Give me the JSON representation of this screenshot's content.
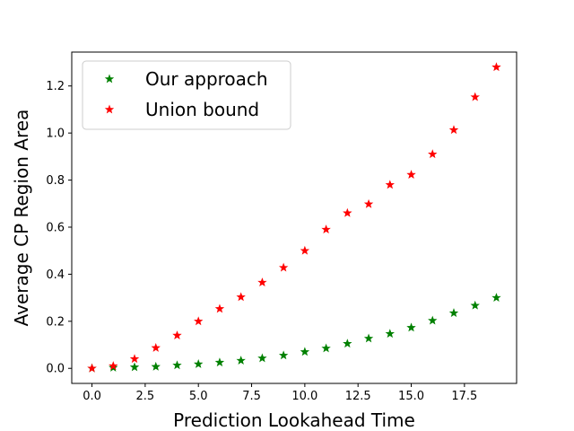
{
  "chart_data": {
    "type": "scatter",
    "xlabel": "Prediction Lookahead Time",
    "ylabel": "Average CP Region Area",
    "xlim": [
      -0.95,
      19.95
    ],
    "ylim": [
      -0.064,
      1.344
    ],
    "xticks": [
      0.0,
      2.5,
      5.0,
      7.5,
      10.0,
      12.5,
      15.0,
      17.5
    ],
    "xtick_labels": [
      "0.0",
      "2.5",
      "5.0",
      "7.5",
      "10.0",
      "12.5",
      "15.0",
      "17.5"
    ],
    "yticks": [
      0.0,
      0.2,
      0.4,
      0.6,
      0.8,
      1.0,
      1.2
    ],
    "ytick_labels": [
      "0.0",
      "0.2",
      "0.4",
      "0.6",
      "0.8",
      "1.0",
      "1.2"
    ],
    "grid": false,
    "legend_position": "top-left",
    "x": [
      0,
      1,
      2,
      3,
      4,
      5,
      6,
      7,
      8,
      9,
      10,
      11,
      12,
      13,
      14,
      15,
      16,
      17,
      18,
      19
    ],
    "series": [
      {
        "name": "Our approach",
        "color": "#008000",
        "marker": "star",
        "values": [
          0.0,
          0.003,
          0.005,
          0.007,
          0.013,
          0.018,
          0.025,
          0.033,
          0.043,
          0.055,
          0.07,
          0.085,
          0.105,
          0.127,
          0.147,
          0.173,
          0.203,
          0.235,
          0.267,
          0.3
        ]
      },
      {
        "name": "Union bound",
        "color": "#ff0000",
        "marker": "star",
        "values": [
          0.0,
          0.01,
          0.04,
          0.087,
          0.14,
          0.2,
          0.253,
          0.303,
          0.365,
          0.428,
          0.5,
          0.59,
          0.66,
          0.698,
          0.78,
          0.823,
          0.91,
          1.013,
          1.153,
          1.28
        ]
      }
    ]
  }
}
